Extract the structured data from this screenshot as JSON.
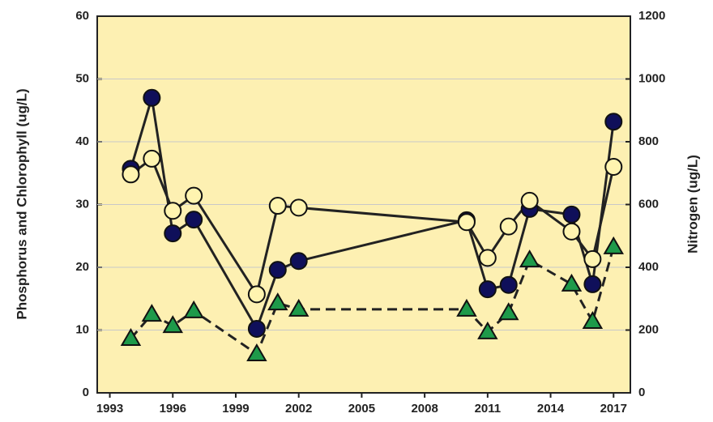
{
  "chart_data": {
    "type": "line",
    "y_label": "Phosphorus and Chlorophyll (ug/L)",
    "y2_label": "Nitrogen (ug/L)",
    "x": [
      1994,
      1995,
      1996,
      1997,
      2000,
      2001,
      2002,
      2010,
      2011,
      2012,
      2013,
      2015,
      2016,
      2017
    ],
    "xlim": [
      1992.4,
      2017.8
    ],
    "xticks": [
      1993,
      1996,
      1999,
      2002,
      2005,
      2008,
      2011,
      2014,
      2017
    ],
    "ylim": [
      0,
      60
    ],
    "yticks": [
      0,
      10,
      20,
      30,
      40,
      50,
      60
    ],
    "y2lim": [
      0,
      1200
    ],
    "y2ticks": [
      0,
      200,
      400,
      600,
      800,
      1000,
      1200
    ],
    "grid": true,
    "background": "#fdf0b2",
    "series": [
      {
        "color": "#0f0f5a",
        "marker": "circle",
        "values": [
          35.7,
          47.0,
          25.4,
          27.6,
          10.2,
          19.6,
          21.0,
          27.5,
          16.5,
          17.2,
          29.3,
          28.4,
          17.3,
          43.2
        ]
      },
      {
        "color": "#fff4b0",
        "marker": "circle",
        "values": [
          34.8,
          37.3,
          29.0,
          31.4,
          15.7,
          29.8,
          29.5,
          27.2,
          21.5,
          26.5,
          30.6,
          25.7,
          21.3,
          36.0
        ]
      },
      {
        "color": "#1e9a4a",
        "marker": "triangle",
        "dashed": true,
        "axis": "y2",
        "values": [
          173,
          250,
          214,
          261,
          124,
          286,
          266,
          266,
          194,
          255,
          423,
          346,
          227,
          465
        ]
      }
    ]
  }
}
